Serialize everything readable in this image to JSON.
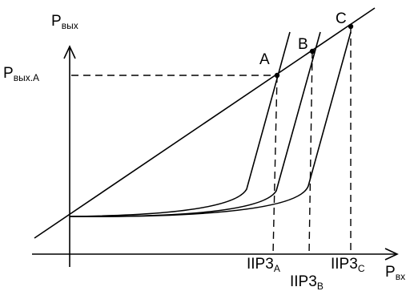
{
  "labels": {
    "y_axis": "P",
    "y_axis_sub": "вых",
    "x_axis": "P",
    "x_axis_sub": "вх",
    "y_level": "P",
    "y_level_sub": "вых.A",
    "point_a": "A",
    "point_b": "B",
    "point_c": "C",
    "iip3": "IIP3",
    "iip3_sub_a": "A",
    "iip3_sub_b": "B",
    "iip3_sub_c": "C"
  },
  "colors": {
    "stroke": "#000000",
    "background": "#ffffff"
  }
}
